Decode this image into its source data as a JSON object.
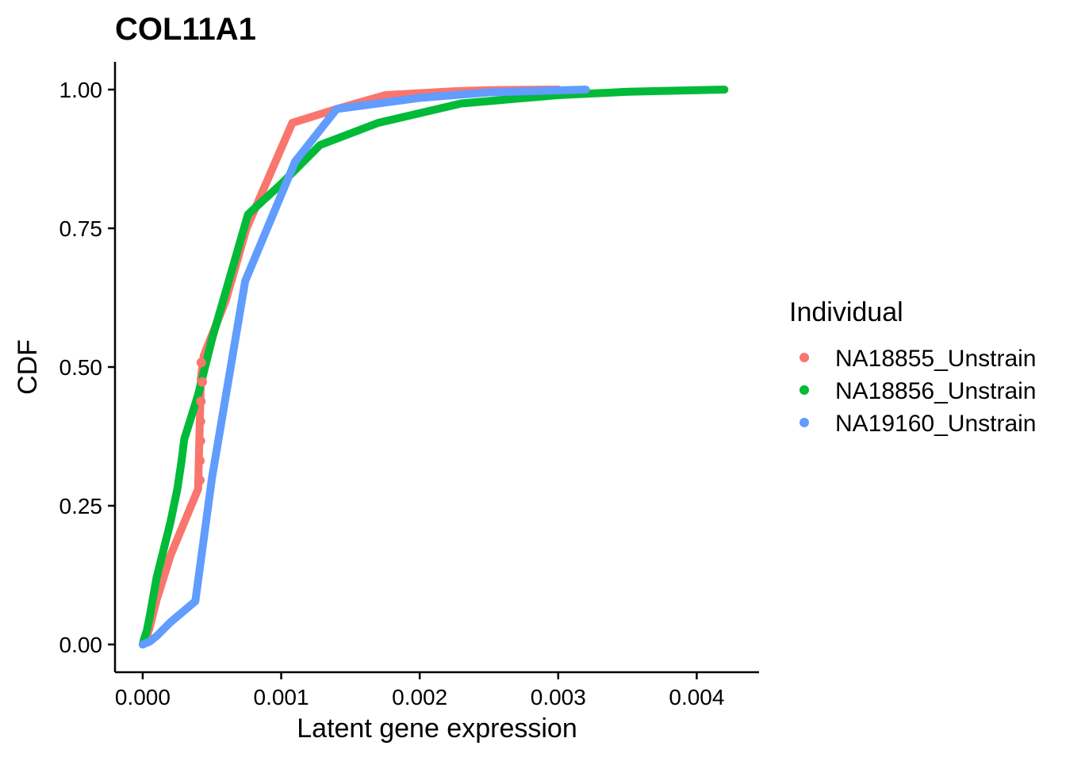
{
  "chart_data": {
    "type": "line",
    "title": "COL11A1",
    "xlabel": "Latent gene expression",
    "ylabel": "CDF",
    "xlim": [
      -0.0002,
      0.00445
    ],
    "ylim": [
      -0.05,
      1.05
    ],
    "x_ticks": [
      0.0,
      0.001,
      0.002,
      0.003,
      0.004
    ],
    "x_tick_labels": [
      "0.000",
      "0.001",
      "0.002",
      "0.003",
      "0.004"
    ],
    "y_ticks": [
      0.0,
      0.25,
      0.5,
      0.75,
      1.0
    ],
    "y_tick_labels": [
      "0.00",
      "0.25",
      "0.50",
      "0.75",
      "1.00"
    ],
    "grid": false,
    "legend": {
      "title": "Individual",
      "placement": "right"
    },
    "series": [
      {
        "name": "NA18855_Unstrain",
        "color": "#F8766D",
        "x": [
          0.0,
          1e-05,
          3e-05,
          5e-05,
          0.0001,
          0.0002,
          0.0003,
          0.0004,
          0.00042,
          0.00044,
          0.0006,
          0.00075,
          0.00108,
          0.0014,
          0.00175,
          0.00225,
          0.0025,
          0.003
        ],
        "y": [
          0.0,
          0.005,
          0.015,
          0.03,
          0.08,
          0.16,
          0.22,
          0.28,
          0.48,
          0.52,
          0.62,
          0.75,
          0.94,
          0.965,
          0.99,
          0.997,
          0.999,
          1.0
        ]
      },
      {
        "name": "NA18856_Unstrain",
        "color": "#00BA38",
        "x": [
          0.0,
          1e-05,
          3e-05,
          5e-05,
          0.0001,
          0.0002,
          0.00025,
          0.00028,
          0.0003,
          0.0004,
          0.0005,
          0.00076,
          0.001,
          0.00128,
          0.0017,
          0.0023,
          0.003,
          0.0035,
          0.0042
        ],
        "y": [
          0.0,
          0.01,
          0.025,
          0.05,
          0.12,
          0.22,
          0.28,
          0.33,
          0.37,
          0.45,
          0.55,
          0.775,
          0.83,
          0.9,
          0.94,
          0.975,
          0.99,
          0.996,
          1.0
        ]
      },
      {
        "name": "NA19160_Unstrain",
        "color": "#619CFF",
        "x": [
          0.0,
          5e-05,
          0.0001,
          0.0002,
          0.00038,
          0.0005,
          0.00074,
          0.0011,
          0.0014,
          0.002,
          0.0025,
          0.0032
        ],
        "y": [
          0.0,
          0.005,
          0.015,
          0.04,
          0.078,
          0.3,
          0.655,
          0.87,
          0.965,
          0.985,
          0.995,
          1.0
        ]
      }
    ],
    "points": [
      {
        "series": "NA18855_Unstrain",
        "x": 0.000413,
        "y": 0.296
      },
      {
        "series": "NA18855_Unstrain",
        "x": 0.000413,
        "y": 0.331
      },
      {
        "series": "NA18855_Unstrain",
        "x": 0.000417,
        "y": 0.367
      },
      {
        "series": "NA18855_Unstrain",
        "x": 0.000417,
        "y": 0.402
      },
      {
        "series": "NA18855_Unstrain",
        "x": 0.00042,
        "y": 0.438
      },
      {
        "series": "NA18855_Unstrain",
        "x": 0.00043,
        "y": 0.473
      },
      {
        "series": "NA18855_Unstrain",
        "x": 0.000423,
        "y": 0.508
      }
    ]
  }
}
